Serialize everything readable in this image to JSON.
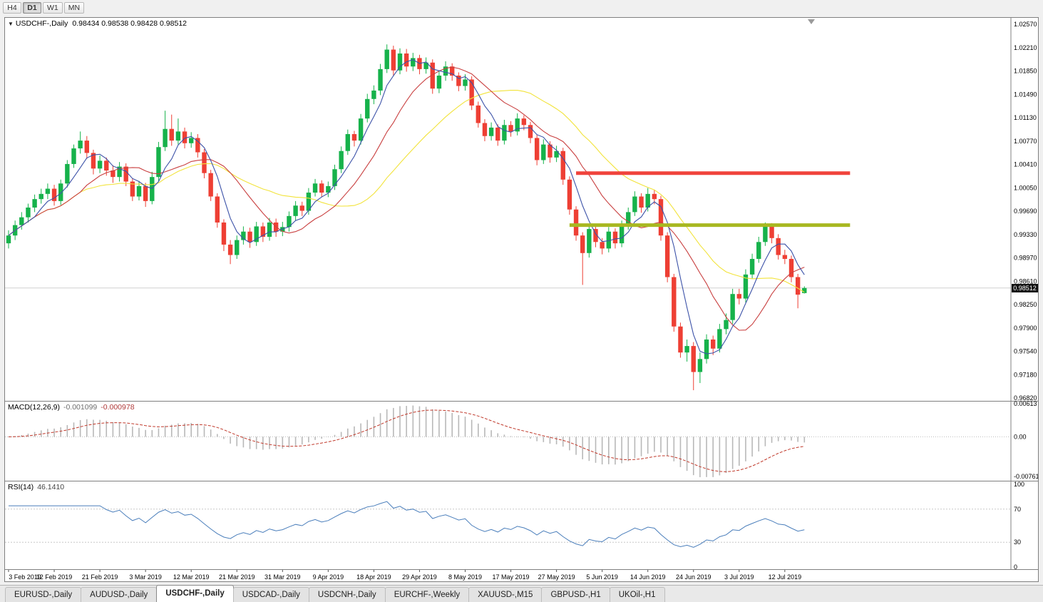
{
  "theme": {
    "bull": "#16b24b",
    "bear": "#ee3f34",
    "ma_fast": "#3c52a8",
    "ma_mid": "#c94040",
    "ma_slow": "#f2e33a",
    "resistance": "#f0433c",
    "support": "#a8b821",
    "macd_bar": "#b8b8b8",
    "macd_signal": "#c0392b",
    "rsi_line": "#4a7ebb",
    "grid": "#cfcfcf",
    "badge_bg": "#111111",
    "badge_text": "#ffffff"
  },
  "toolbar": {
    "timeframes": [
      {
        "label": "H4",
        "active": false
      },
      {
        "label": "D1",
        "active": true
      },
      {
        "label": "W1",
        "active": false
      },
      {
        "label": "MN",
        "active": false
      }
    ]
  },
  "chart": {
    "title": "USDCHF-,Daily",
    "ohlc_text": "0.98434 0.98538 0.98428 0.98512",
    "current_price": "0.98512",
    "price_scale": {
      "top": 1.0257,
      "bottom": 0.9682,
      "labels": [
        "1.02570",
        "1.02210",
        "1.01850",
        "1.01490",
        "1.01130",
        "1.00770",
        "1.00410",
        "1.00050",
        "0.99690",
        "0.99330",
        "0.98970",
        "0.98610",
        "0.98250",
        "0.97900",
        "0.97540",
        "0.97180",
        "0.96820"
      ]
    },
    "levels": [
      {
        "name": "resistance-line",
        "price": 1.0028,
        "from_idx": 87,
        "to_idx": 129,
        "color_key": "resistance"
      },
      {
        "name": "support-line",
        "price": 0.9948,
        "from_idx": 86,
        "to_idx": 129,
        "color_key": "support"
      }
    ],
    "moving_averages": [
      {
        "period": 24,
        "color_key": "ma_slow"
      },
      {
        "period": 12,
        "color_key": "ma_mid"
      },
      {
        "period": 5,
        "color_key": "ma_fast"
      }
    ]
  },
  "macd": {
    "label": "MACD(12,26,9)",
    "value1": "-0.001099",
    "value2": "-0.000978",
    "fast": 12,
    "slow": 26,
    "signal": 9,
    "scale": {
      "max": 0.00613,
      "min": -0.00761,
      "labels": {
        "top": "0.00613",
        "zero": "0.00",
        "bottom": "-0.00761"
      }
    }
  },
  "rsi": {
    "label": "RSI(14)",
    "value": "46.1410",
    "period": 14,
    "scale_labels": [
      "100",
      "70",
      "30",
      "0"
    ],
    "guide_levels": [
      70,
      30
    ]
  },
  "x_axis": {
    "labels": [
      {
        "idx": 0,
        "text": "3 Feb 2019"
      },
      {
        "idx": 7,
        "text": "12 Feb 2019"
      },
      {
        "idx": 14,
        "text": "21 Feb 2019"
      },
      {
        "idx": 21,
        "text": "3 Mar 2019"
      },
      {
        "idx": 28,
        "text": "12 Mar 2019"
      },
      {
        "idx": 35,
        "text": "21 Mar 2019"
      },
      {
        "idx": 42,
        "text": "31 Mar 2019"
      },
      {
        "idx": 49,
        "text": "9 Apr 2019"
      },
      {
        "idx": 56,
        "text": "18 Apr 2019"
      },
      {
        "idx": 63,
        "text": "29 Apr 2019"
      },
      {
        "idx": 70,
        "text": "8 May 2019"
      },
      {
        "idx": 77,
        "text": "17 May 2019"
      },
      {
        "idx": 84,
        "text": "27 May 2019"
      },
      {
        "idx": 91,
        "text": "5 Jun 2019"
      },
      {
        "idx": 98,
        "text": "14 Jun 2019"
      },
      {
        "idx": 105,
        "text": "24 Jun 2019"
      },
      {
        "idx": 112,
        "text": "3 Jul 2019"
      },
      {
        "idx": 119,
        "text": "12 Jul 2019"
      }
    ]
  },
  "tabs": [
    {
      "label": "EURUSD-,Daily",
      "active": false
    },
    {
      "label": "AUDUSD-,Daily",
      "active": false
    },
    {
      "label": "USDCHF-,Daily",
      "active": true
    },
    {
      "label": "USDCAD-,Daily",
      "active": false
    },
    {
      "label": "USDCNH-,Daily",
      "active": false
    },
    {
      "label": "EURCHF-,Weekly",
      "active": false
    },
    {
      "label": "XAUUSD-,M15",
      "active": false
    },
    {
      "label": "GBPUSD-,H1",
      "active": false
    },
    {
      "label": "UKOil-,H1",
      "active": false
    }
  ],
  "chart_data": {
    "type": "candlestick",
    "symbol": "USDCHF-",
    "timeframe": "Daily",
    "ohlc_order": [
      "open",
      "high",
      "low",
      "close"
    ],
    "candles": [
      [
        0.992,
        0.994,
        0.9912,
        0.9932
      ],
      [
        0.9932,
        0.9955,
        0.9925,
        0.9948
      ],
      [
        0.9948,
        0.9968,
        0.9941,
        0.996
      ],
      [
        0.996,
        0.9981,
        0.9952,
        0.9975
      ],
      [
        0.9975,
        0.9995,
        0.9968,
        0.9988
      ],
      [
        0.9988,
        1.0004,
        0.9981,
        0.9996
      ],
      [
        0.9996,
        1.0012,
        0.9988,
        1.0004
      ],
      [
        1.0004,
        1.001,
        0.9978,
        0.9985
      ],
      [
        0.9985,
        1.0018,
        0.9979,
        1.0012
      ],
      [
        1.0012,
        1.0048,
        1.0006,
        1.0042
      ],
      [
        1.0042,
        1.0072,
        1.0036,
        1.0066
      ],
      [
        1.0066,
        1.0092,
        1.0058,
        1.0078
      ],
      [
        1.0078,
        1.0085,
        1.005,
        1.0059
      ],
      [
        1.0059,
        1.0064,
        1.0026,
        1.0035
      ],
      [
        1.0035,
        1.0055,
        1.0028,
        1.0047
      ],
      [
        1.0047,
        1.0052,
        1.0024,
        1.0032
      ],
      [
        1.0032,
        1.004,
        1.0013,
        1.0022
      ],
      [
        1.0022,
        1.0045,
        1.0015,
        1.0038
      ],
      [
        1.0038,
        1.0043,
        1.0008,
        1.0015
      ],
      [
        1.0015,
        1.002,
        0.9985,
        0.9992
      ],
      [
        0.9992,
        1.0016,
        0.9986,
        1.0008
      ],
      [
        1.0008,
        1.0013,
        0.9976,
        0.9985
      ],
      [
        0.9985,
        1.003,
        0.998,
        1.0022
      ],
      [
        1.0022,
        1.0076,
        1.0016,
        1.0068
      ],
      [
        1.0068,
        1.0124,
        1.0062,
        1.0096
      ],
      [
        1.0096,
        1.0118,
        1.007,
        1.0078
      ],
      [
        1.0078,
        1.0112,
        1.0072,
        1.0092
      ],
      [
        1.0092,
        1.0098,
        1.0066,
        1.0074
      ],
      [
        1.0074,
        1.0091,
        1.0067,
        1.0082
      ],
      [
        1.0082,
        1.0088,
        1.0052,
        1.006
      ],
      [
        1.006,
        1.0065,
        1.002,
        1.0028
      ],
      [
        1.0028,
        1.0033,
        0.9985,
        0.9992
      ],
      [
        0.9992,
        0.9997,
        0.9944,
        0.9952
      ],
      [
        0.9952,
        0.9957,
        0.9908,
        0.9918
      ],
      [
        0.9918,
        0.9925,
        0.9888,
        0.9902
      ],
      [
        0.9902,
        0.9932,
        0.9896,
        0.9925
      ],
      [
        0.9925,
        0.9946,
        0.9918,
        0.9938
      ],
      [
        0.9938,
        0.9944,
        0.9913,
        0.9922
      ],
      [
        0.9922,
        0.9953,
        0.9916,
        0.9946
      ],
      [
        0.9946,
        0.9952,
        0.9922,
        0.993
      ],
      [
        0.993,
        0.9959,
        0.9924,
        0.9952
      ],
      [
        0.9952,
        0.9958,
        0.993,
        0.9938
      ],
      [
        0.9938,
        0.9953,
        0.9931,
        0.9945
      ],
      [
        0.9945,
        0.9969,
        0.9938,
        0.9962
      ],
      [
        0.9962,
        0.9985,
        0.9955,
        0.9978
      ],
      [
        0.9978,
        0.9984,
        0.9962,
        0.997
      ],
      [
        0.997,
        1.0005,
        0.9964,
        0.9998
      ],
      [
        0.9998,
        1.0019,
        0.9992,
        1.0012
      ],
      [
        1.0012,
        1.0017,
        0.9991,
        0.9998
      ],
      [
        0.9998,
        1.0015,
        0.9991,
        1.0008
      ],
      [
        1.0008,
        1.0041,
        1.0002,
        1.0034
      ],
      [
        1.0034,
        1.0069,
        1.0028,
        1.0062
      ],
      [
        1.0062,
        1.0095,
        1.0056,
        1.0088
      ],
      [
        1.0088,
        1.0093,
        1.0069,
        1.0078
      ],
      [
        1.0078,
        1.0119,
        1.0072,
        1.0112
      ],
      [
        1.0112,
        1.015,
        1.0106,
        1.0142
      ],
      [
        1.0142,
        1.0163,
        1.0134,
        1.0155
      ],
      [
        1.0155,
        1.0196,
        1.0148,
        1.0188
      ],
      [
        1.0188,
        1.0226,
        1.0182,
        1.0218
      ],
      [
        1.0218,
        1.0224,
        1.0178,
        1.0186
      ],
      [
        1.0186,
        1.022,
        1.018,
        1.0212
      ],
      [
        1.0212,
        1.0219,
        1.0184,
        1.0192
      ],
      [
        1.0192,
        1.0213,
        1.0185,
        1.0205
      ],
      [
        1.0205,
        1.021,
        1.018,
        1.0188
      ],
      [
        1.0188,
        1.0206,
        1.0181,
        1.0198
      ],
      [
        1.0198,
        1.0203,
        1.015,
        1.0158
      ],
      [
        1.0158,
        1.0186,
        1.0151,
        1.0178
      ],
      [
        1.0178,
        1.02,
        1.017,
        1.0192
      ],
      [
        1.0192,
        1.0197,
        1.017,
        1.0178
      ],
      [
        1.0178,
        1.0183,
        1.0154,
        1.0162
      ],
      [
        1.0162,
        1.018,
        1.0155,
        1.0172
      ],
      [
        1.0172,
        1.0177,
        1.0125,
        1.0132
      ],
      [
        1.0132,
        1.0138,
        1.0098,
        1.0105
      ],
      [
        1.0105,
        1.0111,
        1.0077,
        1.0085
      ],
      [
        1.0085,
        1.0106,
        1.0078,
        1.0098
      ],
      [
        1.0098,
        1.0103,
        1.007,
        1.0078
      ],
      [
        1.0078,
        1.011,
        1.0072,
        1.0102
      ],
      [
        1.0102,
        1.0108,
        1.0084,
        1.0092
      ],
      [
        1.0092,
        1.012,
        1.0086,
        1.0112
      ],
      [
        1.0112,
        1.0117,
        1.0094,
        1.0102
      ],
      [
        1.0102,
        1.0107,
        1.0074,
        1.0082
      ],
      [
        1.0082,
        1.0087,
        1.004,
        1.0048
      ],
      [
        1.0048,
        1.008,
        1.0042,
        1.0072
      ],
      [
        1.0072,
        1.0077,
        1.0044,
        1.0052
      ],
      [
        1.0052,
        1.007,
        1.0045,
        1.0062
      ],
      [
        1.0062,
        1.0067,
        1.001,
        1.0018
      ],
      [
        1.0018,
        1.0023,
        0.9964,
        0.9972
      ],
      [
        0.9972,
        0.9977,
        0.9924,
        0.9932
      ],
      [
        0.9932,
        0.9937,
        0.9856,
        0.9905
      ],
      [
        0.9905,
        0.9949,
        0.9898,
        0.9942
      ],
      [
        0.9942,
        0.9947,
        0.9914,
        0.9922
      ],
      [
        0.9922,
        0.9928,
        0.9903,
        0.9912
      ],
      [
        0.9912,
        0.9945,
        0.9906,
        0.9938
      ],
      [
        0.9938,
        0.9943,
        0.9912,
        0.992
      ],
      [
        0.992,
        0.9955,
        0.9914,
        0.9948
      ],
      [
        0.9948,
        0.9975,
        0.9941,
        0.9968
      ],
      [
        0.9968,
        1.0,
        0.9962,
        0.9992
      ],
      [
        0.9992,
        0.9997,
        0.9967,
        0.9975
      ],
      [
        0.9975,
        1.0005,
        0.9969,
        0.9996
      ],
      [
        0.9996,
        1.0002,
        0.998,
        0.9988
      ],
      [
        0.9988,
        0.9993,
        0.9924,
        0.9932
      ],
      [
        0.9932,
        0.9937,
        0.986,
        0.9868
      ],
      [
        0.9868,
        0.9873,
        0.9784,
        0.9792
      ],
      [
        0.9792,
        0.9798,
        0.9744,
        0.9752
      ],
      [
        0.9752,
        0.9772,
        0.9738,
        0.9762
      ],
      [
        0.9762,
        0.9768,
        0.9694,
        0.9722
      ],
      [
        0.9722,
        0.9752,
        0.9705,
        0.9742
      ],
      [
        0.9742,
        0.978,
        0.9735,
        0.9772
      ],
      [
        0.9772,
        0.9778,
        0.9748,
        0.9758
      ],
      [
        0.9758,
        0.9796,
        0.9752,
        0.9788
      ],
      [
        0.9788,
        0.9812,
        0.978,
        0.9802
      ],
      [
        0.9802,
        0.985,
        0.9796,
        0.9842
      ],
      [
        0.9842,
        0.985,
        0.9826,
        0.9835
      ],
      [
        0.9835,
        0.988,
        0.9829,
        0.9872
      ],
      [
        0.9872,
        0.9904,
        0.9866,
        0.9896
      ],
      [
        0.9896,
        0.993,
        0.989,
        0.9922
      ],
      [
        0.9922,
        0.9952,
        0.9916,
        0.9946
      ],
      [
        0.9946,
        0.9951,
        0.992,
        0.9928
      ],
      [
        0.9928,
        0.9934,
        0.9895,
        0.9902
      ],
      [
        0.9902,
        0.991,
        0.9888,
        0.9896
      ],
      [
        0.9896,
        0.9901,
        0.986,
        0.9868
      ],
      [
        0.9868,
        0.9873,
        0.982,
        0.9841
      ],
      [
        0.98434,
        0.98538,
        0.98428,
        0.98512
      ]
    ]
  }
}
